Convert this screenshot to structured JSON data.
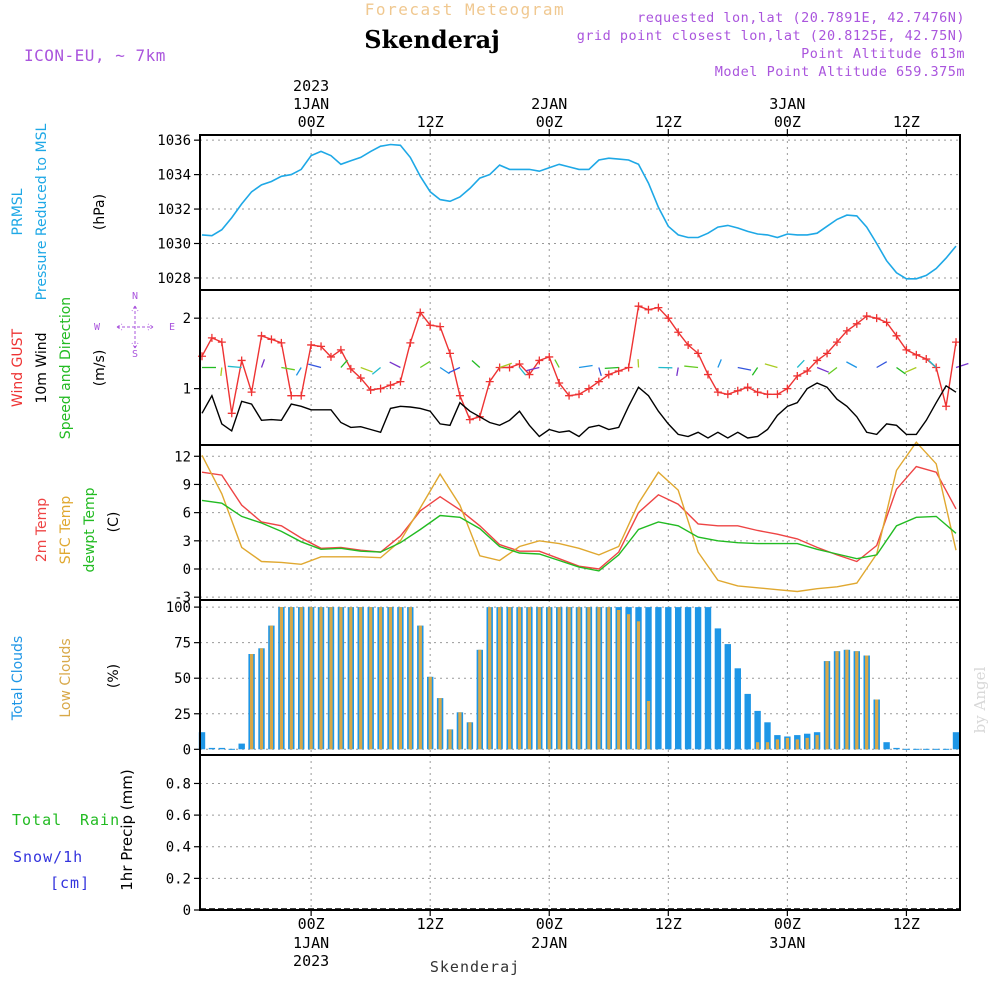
{
  "header": {
    "chart_kind": "Forecast Meteogram",
    "station": "Skenderaj",
    "model": "ICON-EU, ~ 7km",
    "requested": "requested lon,lat (20.7891E, 42.7476N)",
    "grid_point": "grid point closest lon,lat (20.8125E, 42.75N)",
    "point_altitude": "Point Altitude 613m",
    "model_altitude": "Model Point Altitude 659.375m",
    "footer_station": "Skenderaj",
    "watermark": "by Angel"
  },
  "colors": {
    "pressure": "#1ea8e6",
    "gust": "#ee3333",
    "wind": "#000000",
    "temp2m": "#ee4444",
    "sfc": "#e0a830",
    "dewpt": "#22bb22",
    "total_cloud": "#1e96e6",
    "low_cloud": "#d8a848",
    "label_purple": "#aa55dd",
    "rain_green": "#22bb22",
    "snow_blue": "#3333dd"
  },
  "top_axis": {
    "year": "2023",
    "ticks": [
      {
        "h": 0,
        "date": "1JAN",
        "time": "00Z"
      },
      {
        "h": 12,
        "date": "",
        "time": "12Z"
      },
      {
        "h": 24,
        "date": "2JAN",
        "time": "00Z"
      },
      {
        "h": 36,
        "date": "",
        "time": "12Z"
      },
      {
        "h": 48,
        "date": "3JAN",
        "time": "00Z"
      },
      {
        "h": 60,
        "date": "",
        "time": "12Z"
      }
    ]
  },
  "bottom_axis": {
    "year": "2023",
    "ticks": [
      {
        "h": 0,
        "time": "00Z",
        "date": "1JAN"
      },
      {
        "h": 12,
        "time": "12Z",
        "date": ""
      },
      {
        "h": 24,
        "time": "00Z",
        "date": "2JAN"
      },
      {
        "h": 36,
        "time": "12Z",
        "date": ""
      },
      {
        "h": 48,
        "time": "00Z",
        "date": "3JAN"
      },
      {
        "h": 60,
        "time": "12Z",
        "date": ""
      }
    ]
  },
  "panel_labels": {
    "pressure": [
      "PRMSL",
      "Pressure Reduced to MSL",
      "(hPa)"
    ],
    "wind": [
      "Wind GUST",
      "10m Wind",
      "Speed and Direction",
      "(m/s)"
    ],
    "compass": {
      "n": "N",
      "s": "S",
      "w": "W",
      "e": "E"
    },
    "temp": [
      "2m Temp",
      "SFC Temp",
      "dewpt Temp",
      "(C)"
    ],
    "cloud": [
      "Total Clouds",
      "Low Clouds",
      "(%)"
    ],
    "precip": {
      "total": "Total",
      "rain": "Rain",
      "snow": "Snow/1h",
      "cm": "[cm]",
      "axis": "1hr Precip (mm)"
    }
  },
  "chart_data": [
    {
      "type": "line",
      "panel": "pressure",
      "ylim": [
        1027.3,
        1036.3
      ],
      "yticks": [
        1028,
        1030,
        1032,
        1034,
        1036
      ],
      "series": [
        {
          "name": "PRMSL",
          "x": [
            -11,
            -10,
            -9,
            -8,
            -7,
            -6,
            -5,
            -4,
            -3,
            -2,
            -1,
            0,
            1,
            2,
            3,
            4,
            5,
            6,
            7,
            8,
            9,
            10,
            11,
            12,
            13,
            14,
            15,
            16,
            17,
            18,
            19,
            20,
            21,
            22,
            23,
            24,
            25,
            26,
            27,
            28,
            29,
            30,
            31,
            32,
            33,
            34,
            35,
            36,
            37,
            38,
            39,
            40,
            41,
            42,
            43,
            44,
            45,
            46,
            47,
            48,
            49,
            50,
            51,
            52,
            53,
            54,
            55,
            56,
            57,
            58,
            59,
            60,
            61,
            62,
            63,
            64,
            65
          ],
          "values": [
            1030.5,
            1030.45,
            1030.8,
            1031.5,
            1032.3,
            1033.0,
            1033.4,
            1033.6,
            1033.9,
            1034.0,
            1034.3,
            1035.1,
            1035.35,
            1035.1,
            1034.6,
            1034.8,
            1035.0,
            1035.35,
            1035.65,
            1035.75,
            1035.7,
            1035.0,
            1033.9,
            1033.0,
            1032.55,
            1032.45,
            1032.7,
            1033.2,
            1033.8,
            1034.0,
            1034.55,
            1034.3,
            1034.3,
            1034.3,
            1034.2,
            1034.4,
            1034.6,
            1034.45,
            1034.3,
            1034.3,
            1034.85,
            1034.95,
            1034.9,
            1034.85,
            1034.6,
            1033.5,
            1032.1,
            1031.0,
            1030.5,
            1030.35,
            1030.35,
            1030.6,
            1030.95,
            1031.05,
            1030.9,
            1030.7,
            1030.55,
            1030.5,
            1030.35,
            1030.55,
            1030.5,
            1030.5,
            1030.6,
            1031.0,
            1031.4,
            1031.65,
            1031.6,
            1030.95,
            1030.0,
            1029.0,
            1028.3,
            1027.95,
            1027.95,
            1028.15,
            1028.55,
            1029.15,
            1029.85
          ]
        }
      ]
    },
    {
      "type": "line",
      "panel": "wind",
      "ylim": [
        0.2,
        2.4
      ],
      "yticks": [
        1,
        2
      ],
      "series": [
        {
          "name": "Wind GUST",
          "x": [
            -11,
            -10,
            -9,
            -8,
            -7,
            -6,
            -5,
            -4,
            -3,
            -2,
            -1,
            0,
            1,
            2,
            3,
            4,
            5,
            6,
            7,
            8,
            9,
            10,
            11,
            12,
            13,
            14,
            15,
            16,
            17,
            18,
            19,
            20,
            21,
            22,
            23,
            24,
            25,
            26,
            27,
            28,
            29,
            30,
            31,
            32,
            33,
            34,
            35,
            36,
            37,
            38,
            39,
            40,
            41,
            42,
            43,
            44,
            45,
            46,
            47,
            48,
            49,
            50,
            51,
            52,
            53,
            54,
            55,
            56,
            57,
            58,
            59,
            60,
            61,
            62,
            63,
            64,
            65
          ],
          "values": [
            1.46,
            1.72,
            1.66,
            0.65,
            1.4,
            0.95,
            1.75,
            1.7,
            1.65,
            0.9,
            0.9,
            1.62,
            1.6,
            1.45,
            1.55,
            1.28,
            1.15,
            0.98,
            1.0,
            1.05,
            1.1,
            1.65,
            2.08,
            1.9,
            1.88,
            1.5,
            0.9,
            0.56,
            0.6,
            1.1,
            1.3,
            1.3,
            1.35,
            1.2,
            1.4,
            1.45,
            1.08,
            0.9,
            0.92,
            1.0,
            1.1,
            1.2,
            1.25,
            1.3,
            2.17,
            2.12,
            2.15,
            2.0,
            1.8,
            1.62,
            1.5,
            1.2,
            0.95,
            0.92,
            0.97,
            1.02,
            0.95,
            0.92,
            0.92,
            1.0,
            1.18,
            1.25,
            1.4,
            1.5,
            1.66,
            1.82,
            1.92,
            2.03,
            2.0,
            1.94,
            1.75,
            1.55,
            1.48,
            1.42,
            1.3,
            0.75,
            1.66
          ]
        },
        {
          "name": "10m Wind",
          "x": [
            -11,
            -10,
            -9,
            -8,
            -7,
            -6,
            -5,
            -4,
            -3,
            -2,
            -1,
            0,
            1,
            2,
            3,
            4,
            5,
            6,
            7,
            8,
            9,
            10,
            11,
            12,
            13,
            14,
            15,
            16,
            17,
            18,
            19,
            20,
            21,
            22,
            23,
            24,
            25,
            26,
            27,
            28,
            29,
            30,
            31,
            32,
            33,
            34,
            35,
            36,
            37,
            38,
            39,
            40,
            41,
            42,
            43,
            44,
            45,
            46,
            47,
            48,
            49,
            50,
            51,
            52,
            53,
            54,
            55,
            56,
            57,
            58,
            59,
            60,
            61,
            62,
            63,
            64,
            65
          ],
          "values": [
            0.65,
            0.9,
            0.5,
            0.4,
            0.82,
            0.78,
            0.55,
            0.56,
            0.55,
            0.78,
            0.75,
            0.7,
            0.7,
            0.7,
            0.52,
            0.45,
            0.46,
            0.42,
            0.38,
            0.72,
            0.75,
            0.74,
            0.72,
            0.68,
            0.5,
            0.48,
            0.8,
            0.68,
            0.6,
            0.52,
            0.48,
            0.55,
            0.68,
            0.48,
            0.32,
            0.42,
            0.38,
            0.4,
            0.32,
            0.45,
            0.48,
            0.42,
            0.45,
            0.75,
            1.02,
            0.9,
            0.68,
            0.5,
            0.35,
            0.32,
            0.38,
            0.3,
            0.38,
            0.3,
            0.38,
            0.3,
            0.32,
            0.42,
            0.62,
            0.75,
            0.8,
            1.0,
            1.08,
            1.02,
            0.85,
            0.75,
            0.6,
            0.38,
            0.35,
            0.5,
            0.48,
            0.35,
            0.35,
            0.55,
            0.8,
            1.04,
            0.95
          ]
        }
      ]
    },
    {
      "type": "line",
      "panel": "temp",
      "ylim": [
        -3.3,
        13.2
      ],
      "yticks": [
        -3,
        0,
        3,
        6,
        9,
        12
      ],
      "series": [
        {
          "name": "2m Temp",
          "x": [
            -11,
            -9,
            -7,
            -5,
            -3,
            -1,
            1,
            3,
            5,
            7,
            9,
            11,
            13,
            15,
            17,
            19,
            21,
            23,
            25,
            27,
            29,
            31,
            33,
            35,
            37,
            39,
            41,
            43,
            45,
            47,
            49,
            51,
            53,
            55,
            57,
            59,
            61,
            63,
            65
          ],
          "values": [
            10.3,
            10.0,
            6.8,
            5.0,
            4.6,
            3.3,
            2.2,
            2.3,
            2.0,
            1.8,
            3.5,
            6.2,
            7.7,
            6.3,
            4.6,
            2.6,
            1.9,
            1.9,
            1.1,
            0.3,
            0.0,
            1.8,
            6.0,
            7.9,
            6.9,
            4.8,
            4.6,
            4.6,
            4.1,
            3.7,
            3.2,
            2.3,
            1.5,
            0.8,
            2.5,
            8.5,
            10.9,
            10.3,
            6.4
          ]
        },
        {
          "name": "SFC Temp",
          "x": [
            -11,
            -9,
            -7,
            -5,
            -3,
            -1,
            1,
            3,
            5,
            7,
            9,
            11,
            13,
            15,
            17,
            19,
            21,
            23,
            25,
            27,
            29,
            31,
            33,
            35,
            37,
            39,
            41,
            43,
            45,
            47,
            49,
            51,
            53,
            55,
            57,
            59,
            61,
            63,
            65
          ],
          "values": [
            12.1,
            8.0,
            2.3,
            0.8,
            0.7,
            0.5,
            1.3,
            1.3,
            1.3,
            1.2,
            3.0,
            6.5,
            10.1,
            6.8,
            1.4,
            0.9,
            2.4,
            3.0,
            2.7,
            2.2,
            1.5,
            2.4,
            7.0,
            10.3,
            8.4,
            1.8,
            -1.2,
            -1.8,
            -2.0,
            -2.2,
            -2.4,
            -2.1,
            -1.9,
            -1.5,
            1.6,
            10.5,
            13.5,
            11.2,
            2.0
          ]
        },
        {
          "name": "dewpt Temp",
          "x": [
            -11,
            -9,
            -7,
            -5,
            -3,
            -1,
            1,
            3,
            5,
            7,
            9,
            11,
            13,
            15,
            17,
            19,
            21,
            23,
            25,
            27,
            29,
            31,
            33,
            35,
            37,
            39,
            41,
            43,
            45,
            47,
            49,
            51,
            53,
            55,
            57,
            59,
            61,
            63,
            65
          ],
          "values": [
            7.3,
            7.0,
            5.6,
            4.9,
            4.0,
            2.9,
            2.1,
            2.2,
            1.9,
            1.8,
            2.8,
            4.2,
            5.7,
            5.5,
            4.3,
            2.4,
            1.7,
            1.6,
            0.9,
            0.2,
            -0.2,
            1.5,
            4.2,
            5.0,
            4.6,
            3.4,
            3.0,
            2.8,
            2.7,
            2.7,
            2.7,
            2.1,
            1.6,
            1.1,
            1.5,
            4.6,
            5.5,
            5.6,
            3.8
          ]
        }
      ]
    },
    {
      "type": "bar",
      "panel": "cloud",
      "ylim": [
        -4,
        105
      ],
      "yticks": [
        0,
        25,
        50,
        75,
        100
      ],
      "x": [
        -11,
        -10,
        -9,
        -8,
        -7,
        -6,
        -5,
        -4,
        -3,
        -2,
        -1,
        0,
        1,
        2,
        3,
        4,
        5,
        6,
        7,
        8,
        9,
        10,
        11,
        12,
        13,
        14,
        15,
        16,
        17,
        18,
        19,
        20,
        21,
        22,
        23,
        24,
        25,
        26,
        27,
        28,
        29,
        30,
        31,
        32,
        33,
        34,
        35,
        36,
        37,
        38,
        39,
        40,
        41,
        42,
        43,
        44,
        45,
        46,
        47,
        48,
        49,
        50,
        51,
        52,
        53,
        54,
        55,
        56,
        57,
        58,
        59,
        60,
        61,
        62,
        63,
        64,
        65
      ],
      "series": [
        {
          "name": "Total Clouds",
          "values": [
            12,
            1,
            1,
            0,
            4,
            67,
            71,
            87,
            100,
            100,
            100,
            100,
            100,
            100,
            100,
            100,
            100,
            100,
            100,
            100,
            100,
            100,
            87,
            51,
            36,
            14,
            26,
            19,
            70,
            100,
            100,
            100,
            100,
            100,
            100,
            100,
            100,
            100,
            100,
            100,
            100,
            100,
            100,
            100,
            100,
            100,
            100,
            100,
            100,
            100,
            100,
            100,
            85,
            74,
            57,
            39,
            27,
            19,
            10,
            9,
            10,
            11,
            12,
            62,
            69,
            70,
            69,
            66,
            35,
            5,
            1,
            0,
            0,
            0,
            0,
            0,
            12
          ]
        },
        {
          "name": "Low Clouds",
          "values": [
            0,
            0,
            0,
            0,
            0,
            67,
            71,
            87,
            100,
            100,
            100,
            100,
            100,
            100,
            100,
            100,
            100,
            100,
            100,
            100,
            100,
            100,
            87,
            51,
            36,
            14,
            26,
            19,
            70,
            100,
            100,
            100,
            100,
            100,
            100,
            100,
            100,
            100,
            100,
            100,
            100,
            100,
            98,
            95,
            90,
            34,
            0,
            0,
            0,
            0,
            0,
            0,
            0,
            0,
            0,
            0,
            5,
            5,
            7,
            8,
            7,
            8,
            10,
            62,
            69,
            70,
            69,
            66,
            35,
            0,
            0,
            0,
            0,
            0,
            0,
            0,
            0
          ]
        }
      ]
    },
    {
      "type": "bar",
      "panel": "precip",
      "ylim": [
        0,
        0.98
      ],
      "yticks": [
        0,
        0.2,
        0.4,
        0.6,
        0.8
      ],
      "series": [
        {
          "name": "Total Rain",
          "values": []
        },
        {
          "name": "Snow/1h",
          "values": []
        }
      ]
    }
  ]
}
